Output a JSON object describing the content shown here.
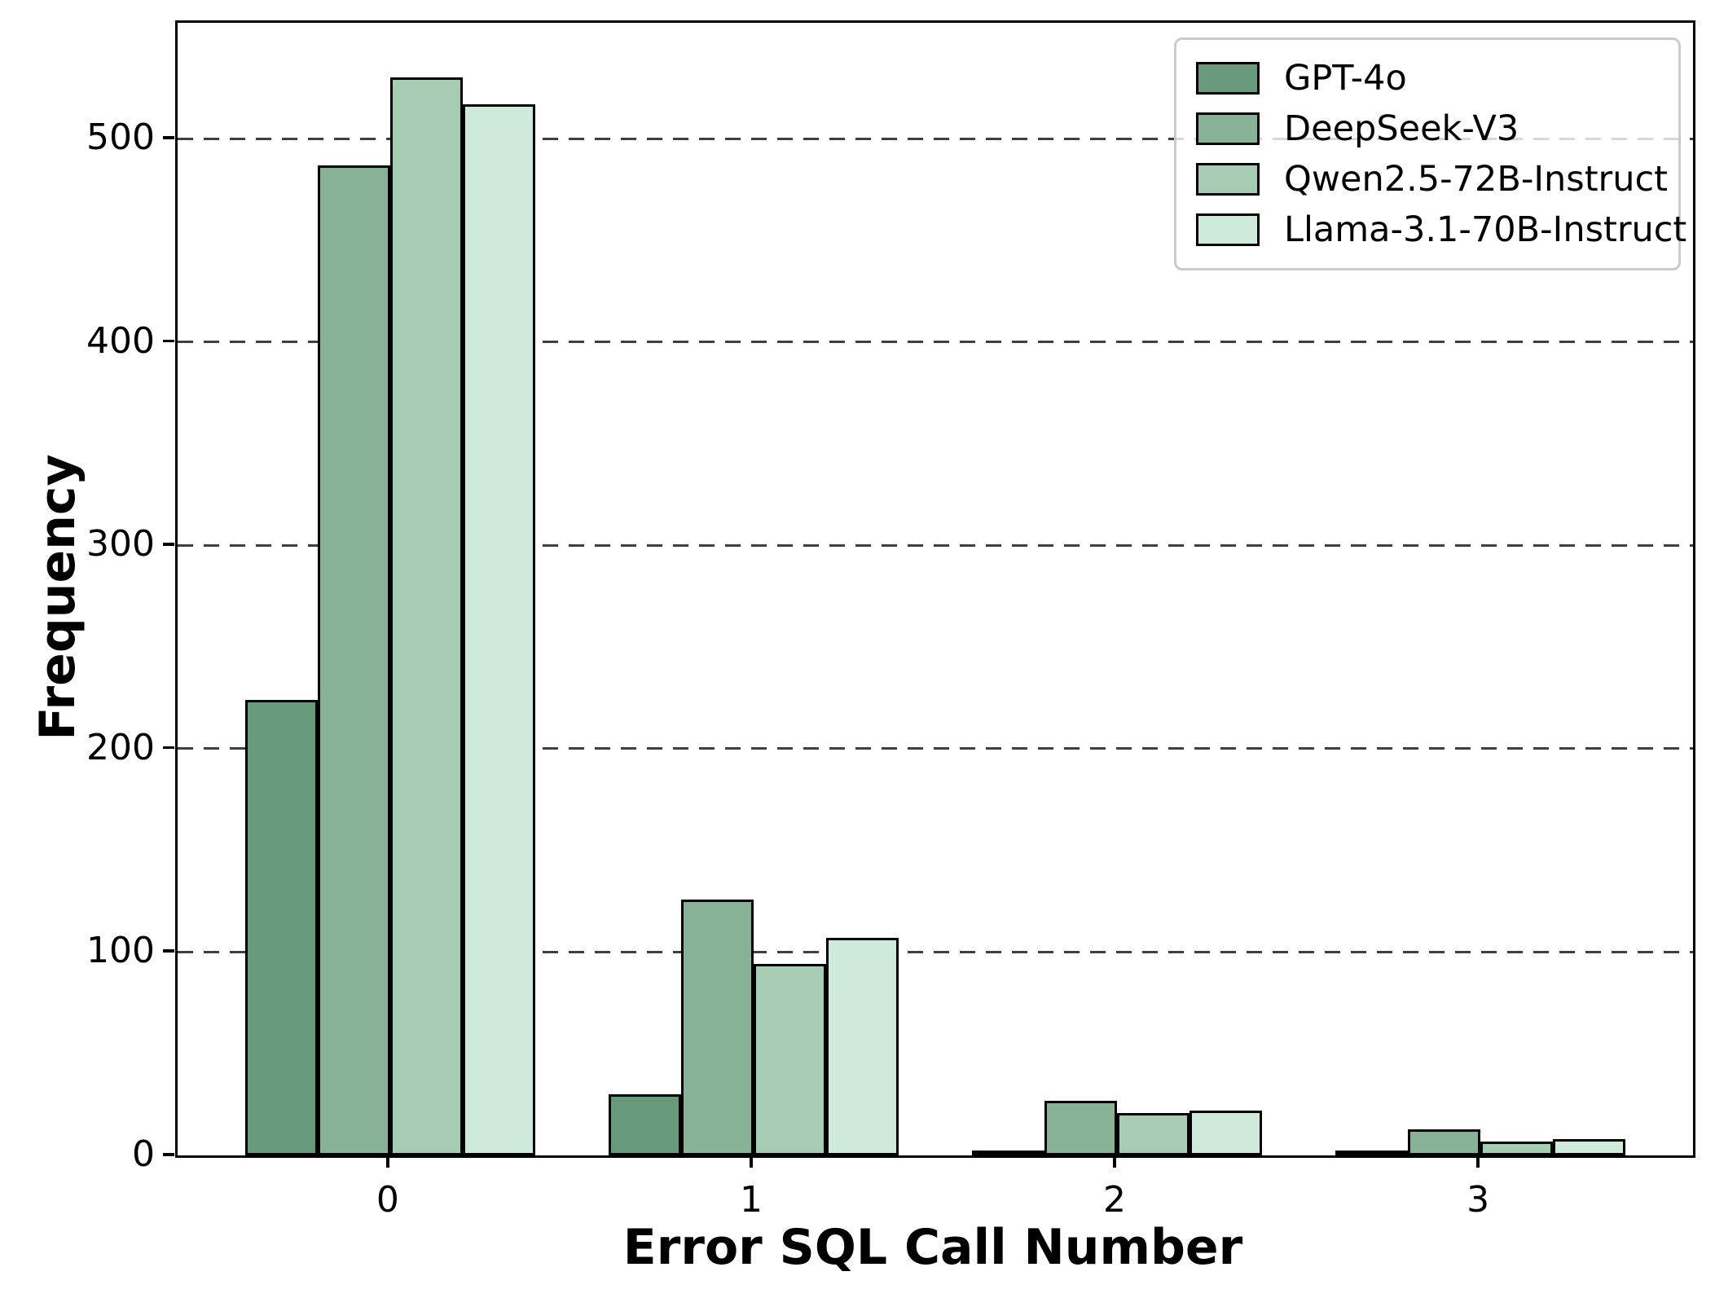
{
  "figure": {
    "background": "#ffffff"
  },
  "chart_data": {
    "type": "bar",
    "title": "",
    "xlabel": "Error SQL Call Number",
    "ylabel": "Frequency",
    "categories": [
      "0",
      "1",
      "2",
      "3"
    ],
    "series": [
      {
        "name": "GPT-4o",
        "color": "#68997a",
        "values": [
          224,
          30,
          2,
          1
        ]
      },
      {
        "name": "DeepSeek-V3",
        "color": "#87b295",
        "values": [
          487,
          126,
          27,
          13
        ]
      },
      {
        "name": "Qwen2.5-72B-Instruct",
        "color": "#a7ccb4",
        "values": [
          530,
          94,
          21,
          7
        ]
      },
      {
        "name": "Llama-3.1-70B-Instruct",
        "color": "#cdeada",
        "values": [
          517,
          107,
          22,
          8
        ]
      }
    ],
    "ylim": [
      0,
      557
    ],
    "xlim": [
      -0.585,
      3.585
    ],
    "yticks": [
      0,
      100,
      200,
      300,
      400,
      500
    ],
    "bar_width_units": 0.2,
    "grid": "horizontal-dashed",
    "grid_color": "#3f3f3f",
    "legend_position": "upper-right",
    "bar_edge_color": "#000000",
    "axis_color": "#000000"
  }
}
